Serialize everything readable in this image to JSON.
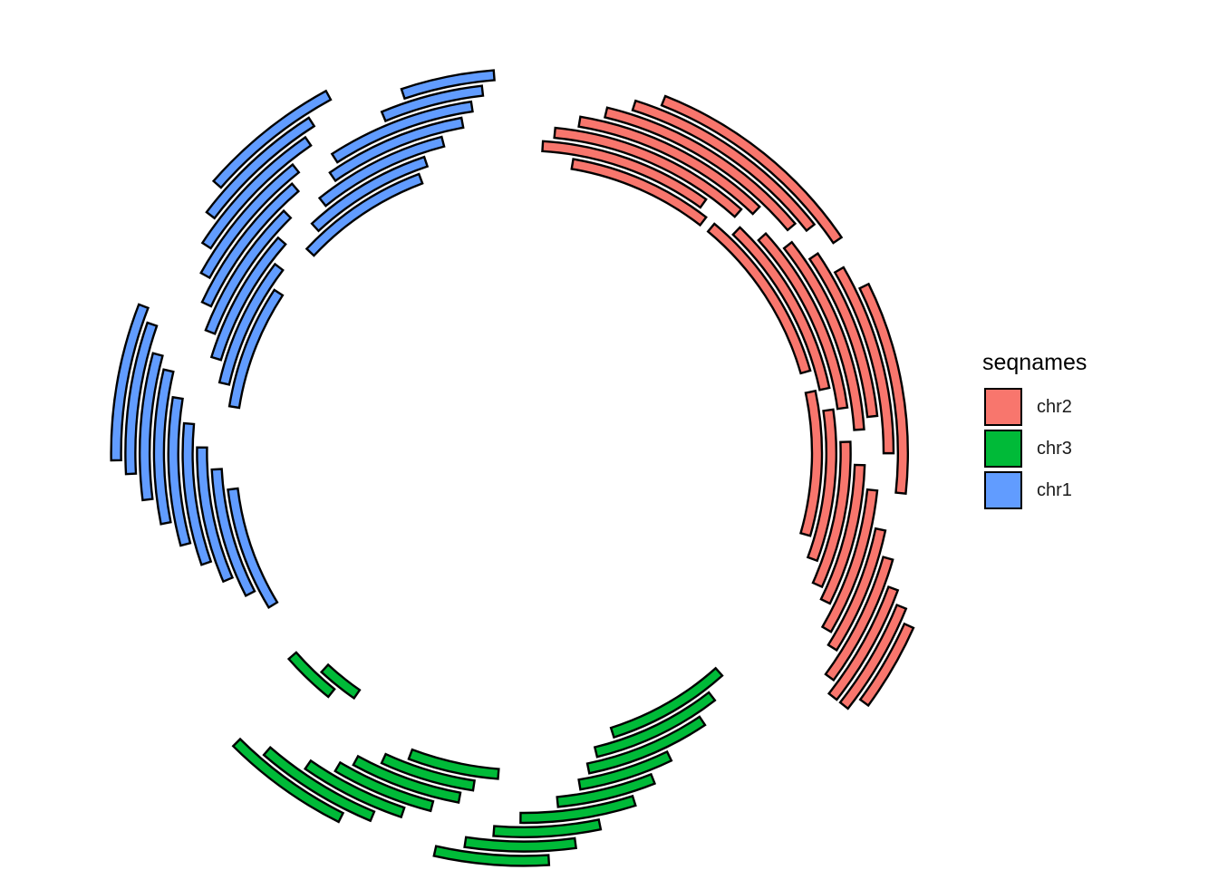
{
  "chart_data": {
    "type": "circular-range",
    "title": "",
    "legend": {
      "title": "seqnames",
      "placement": "right",
      "entries": [
        {
          "name": "chr2",
          "color": "#F8766D"
        },
        {
          "name": "chr3",
          "color": "#00BA38"
        },
        {
          "name": "chr1",
          "color": "#619CFF"
        }
      ]
    },
    "series": [
      {
        "name": "chr2",
        "ranges": [
          {
            "start": 4,
            "end": 18,
            "track": 0
          },
          {
            "start": 1,
            "end": 17,
            "track": 1
          },
          {
            "start": 2,
            "end": 20,
            "track": 2
          },
          {
            "start": 4,
            "end": 21,
            "track": 3
          },
          {
            "start": 6,
            "end": 24,
            "track": 4
          },
          {
            "start": 8,
            "end": 25,
            "track": 5
          },
          {
            "start": 10,
            "end": 27,
            "track": 6
          },
          {
            "start": 19,
            "end": 36,
            "track": 0
          },
          {
            "start": 21,
            "end": 38,
            "track": 1
          },
          {
            "start": 23,
            "end": 40,
            "track": 2
          },
          {
            "start": 25,
            "end": 42,
            "track": 3
          },
          {
            "start": 27,
            "end": 41,
            "track": 4
          },
          {
            "start": 29,
            "end": 44,
            "track": 5
          },
          {
            "start": 31,
            "end": 47,
            "track": 6
          },
          {
            "start": 38,
            "end": 52,
            "track": 0
          },
          {
            "start": 40,
            "end": 54,
            "track": 1
          },
          {
            "start": 43,
            "end": 56,
            "track": 2
          },
          {
            "start": 45,
            "end": 57,
            "track": 3
          },
          {
            "start": 47,
            "end": 59,
            "track": 4
          },
          {
            "start": 50,
            "end": 60,
            "track": 5
          },
          {
            "start": 52,
            "end": 62,
            "track": 6
          },
          {
            "start": 54,
            "end": 63,
            "track": 7
          },
          {
            "start": 55,
            "end": 63,
            "track": 8
          },
          {
            "start": 56,
            "end": 62,
            "track": 9
          }
        ]
      },
      {
        "name": "chr3",
        "ranges": [
          {
            "start": 2,
            "end": 14,
            "track": 0
          },
          {
            "start": 4,
            "end": 16,
            "track": 1
          },
          {
            "start": 6,
            "end": 17,
            "track": 2
          },
          {
            "start": 10,
            "end": 18,
            "track": 3
          },
          {
            "start": 12,
            "end": 20,
            "track": 4
          },
          {
            "start": 14,
            "end": 23,
            "track": 5
          },
          {
            "start": 17,
            "end": 25,
            "track": 6
          },
          {
            "start": 19,
            "end": 27,
            "track": 7
          },
          {
            "start": 21,
            "end": 29,
            "track": 8
          },
          {
            "start": 25,
            "end": 33,
            "track": 2
          },
          {
            "start": 27,
            "end": 35,
            "track": 3
          },
          {
            "start": 28,
            "end": 37,
            "track": 4
          },
          {
            "start": 30,
            "end": 38,
            "track": 5
          },
          {
            "start": 32,
            "end": 40,
            "track": 6
          },
          {
            "start": 34,
            "end": 43,
            "track": 7
          },
          {
            "start": 36,
            "end": 45,
            "track": 8
          },
          {
            "start": 40,
            "end": 44,
            "track": 0
          },
          {
            "start": 42,
            "end": 47,
            "track": 1
          }
        ]
      },
      {
        "name": "chr1",
        "ranges": [
          {
            "start": 2,
            "end": 14,
            "track": 0
          },
          {
            "start": 4,
            "end": 16,
            "track": 1
          },
          {
            "start": 6,
            "end": 18,
            "track": 2
          },
          {
            "start": 8,
            "end": 20,
            "track": 3
          },
          {
            "start": 10,
            "end": 22,
            "track": 4
          },
          {
            "start": 12,
            "end": 24,
            "track": 5
          },
          {
            "start": 14,
            "end": 25,
            "track": 6
          },
          {
            "start": 16,
            "end": 27,
            "track": 7
          },
          {
            "start": 17,
            "end": 28,
            "track": 8
          },
          {
            "start": 22,
            "end": 34,
            "track": 0
          },
          {
            "start": 24,
            "end": 36,
            "track": 1
          },
          {
            "start": 26,
            "end": 38,
            "track": 2
          },
          {
            "start": 28,
            "end": 40,
            "track": 3
          },
          {
            "start": 30,
            "end": 42,
            "track": 4
          },
          {
            "start": 32,
            "end": 43,
            "track": 5
          },
          {
            "start": 34,
            "end": 45,
            "track": 6
          },
          {
            "start": 36,
            "end": 46,
            "track": 7
          },
          {
            "start": 38,
            "end": 48,
            "track": 8
          },
          {
            "start": 39,
            "end": 52,
            "track": 0
          },
          {
            "start": 41,
            "end": 53,
            "track": 1
          },
          {
            "start": 43,
            "end": 55,
            "track": 2
          },
          {
            "start": 45,
            "end": 57,
            "track": 3
          },
          {
            "start": 46,
            "end": 58,
            "track": 4
          },
          {
            "start": 51,
            "end": 59,
            "track": 5
          },
          {
            "start": 53,
            "end": 60,
            "track": 6
          }
        ]
      }
    ]
  }
}
